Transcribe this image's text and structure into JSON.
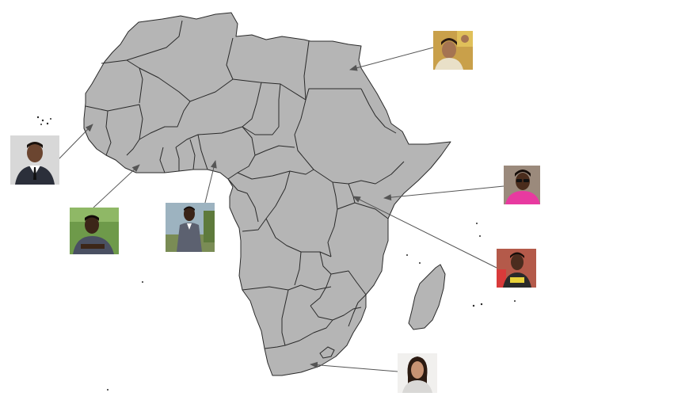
{
  "map": {
    "region": "Africa",
    "fill_color": "#b5b5b5",
    "border_color": "#2a2a2a",
    "background": "#ffffff",
    "arrow_color": "#555555"
  },
  "photos": [
    {
      "id": "egypt",
      "subject": "person-at-event",
      "palette": {
        "bg": "#c9a04a",
        "skin": "#a57452",
        "shirt": "#e9e0c8",
        "hair": "#2a1a12"
      }
    },
    {
      "id": "senegal",
      "subject": "man-in-suit",
      "palette": {
        "bg": "#d8d8d8",
        "skin": "#6b4530",
        "shirt": "#ffffff",
        "hair": "#1a120d"
      }
    },
    {
      "id": "ivory-coast",
      "subject": "man-outdoors",
      "palette": {
        "bg": "#6e9a4a",
        "skin": "#3c2618",
        "shirt": "#4a5062",
        "hair": "#120b08"
      }
    },
    {
      "id": "nigeria",
      "subject": "man-in-suit-outdoors",
      "palette": {
        "bg": "#9db3c0",
        "skin": "#3a2418",
        "shirt": "#5c6170",
        "hair": "#120b08"
      }
    },
    {
      "id": "kenya",
      "subject": "woman-with-sunglasses",
      "palette": {
        "bg": "#9b8a7c",
        "skin": "#4a2c1c",
        "shirt": "#e83aa0",
        "hair": "#160d09"
      }
    },
    {
      "id": "rwanda",
      "subject": "woman-in-printed-shirt",
      "palette": {
        "bg": "#b45a4a",
        "skin": "#4b2c1e",
        "shirt": "#2a2a2a",
        "hair": "#160d09"
      }
    },
    {
      "id": "south-africa",
      "subject": "woman-portrait",
      "palette": {
        "bg": "#f1f0ee",
        "skin": "#c89373",
        "shirt": "#d9d8d6",
        "hair": "#2c1b12"
      }
    }
  ]
}
